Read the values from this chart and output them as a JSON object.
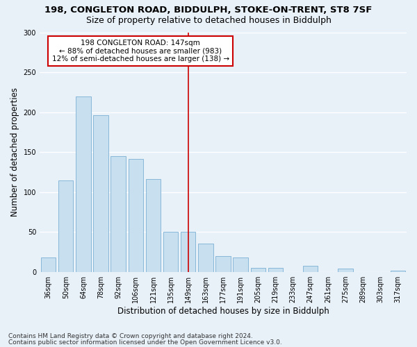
{
  "title1": "198, CONGLETON ROAD, BIDDULPH, STOKE-ON-TRENT, ST8 7SF",
  "title2": "Size of property relative to detached houses in Biddulph",
  "xlabel": "Distribution of detached houses by size in Biddulph",
  "ylabel": "Number of detached properties",
  "categories": [
    "36sqm",
    "50sqm",
    "64sqm",
    "78sqm",
    "92sqm",
    "106sqm",
    "121sqm",
    "135sqm",
    "149sqm",
    "163sqm",
    "177sqm",
    "191sqm",
    "205sqm",
    "219sqm",
    "233sqm",
    "247sqm",
    "261sqm",
    "275sqm",
    "289sqm",
    "303sqm",
    "317sqm"
  ],
  "values": [
    18,
    115,
    220,
    196,
    145,
    142,
    116,
    50,
    50,
    36,
    20,
    18,
    5,
    5,
    0,
    8,
    0,
    4,
    0,
    0,
    2
  ],
  "bar_color": "#c8dff0",
  "bar_edge_color": "#7aafd4",
  "vline_x_idx": 8,
  "vline_color": "#cc0000",
  "annotation_title": "198 CONGLETON ROAD: 147sqm",
  "annotation_line1": "← 88% of detached houses are smaller (983)",
  "annotation_line2": "12% of semi-detached houses are larger (138) →",
  "annotation_box_color": "#cc0000",
  "annotation_bg": "#ffffff",
  "ylim": [
    0,
    300
  ],
  "yticks": [
    0,
    50,
    100,
    150,
    200,
    250,
    300
  ],
  "footnote1": "Contains HM Land Registry data © Crown copyright and database right 2024.",
  "footnote2": "Contains public sector information licensed under the Open Government Licence v3.0.",
  "background_color": "#e8f0f8",
  "plot_bg": "#e8f0f8",
  "grid_color": "#ffffff",
  "title1_fontsize": 9.5,
  "title2_fontsize": 9,
  "axis_label_fontsize": 8.5,
  "tick_fontsize": 7,
  "annotation_fontsize": 7.5,
  "footnote_fontsize": 6.5
}
